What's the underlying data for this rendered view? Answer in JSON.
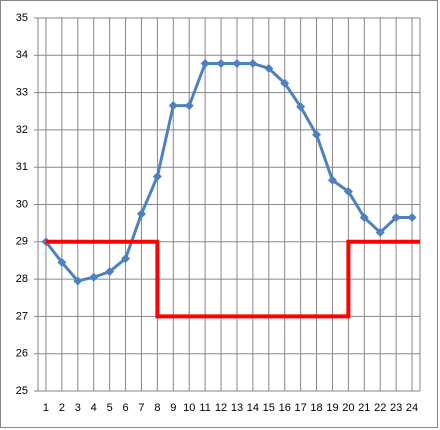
{
  "chart_data": {
    "type": "line",
    "categories": [
      "1",
      "2",
      "3",
      "4",
      "5",
      "6",
      "7",
      "8",
      "9",
      "10",
      "11",
      "12",
      "13",
      "14",
      "15",
      "16",
      "17",
      "18",
      "19",
      "20",
      "21",
      "22",
      "23",
      "24"
    ],
    "series": [
      {
        "color": "#4f81bd",
        "marker": "diamond",
        "values": [
          29.0,
          28.45,
          27.95,
          28.05,
          28.2,
          28.55,
          29.75,
          30.75,
          32.65,
          32.65,
          33.78,
          33.78,
          33.78,
          33.78,
          33.65,
          33.25,
          32.62,
          31.87,
          30.65,
          30.35,
          29.65,
          29.25,
          29.65,
          29.65
        ]
      },
      {
        "color": "#ff0000",
        "step": "post",
        "values": [
          29,
          29,
          29,
          29,
          29,
          29,
          29,
          27,
          27,
          27,
          27,
          27,
          27,
          27,
          27,
          27,
          27,
          27,
          27,
          29,
          29,
          29,
          29,
          29
        ]
      }
    ],
    "ylim": [
      25,
      35
    ],
    "yticks": [
      25,
      26,
      27,
      28,
      29,
      30,
      31,
      32,
      33,
      34,
      35
    ],
    "grid": true
  }
}
